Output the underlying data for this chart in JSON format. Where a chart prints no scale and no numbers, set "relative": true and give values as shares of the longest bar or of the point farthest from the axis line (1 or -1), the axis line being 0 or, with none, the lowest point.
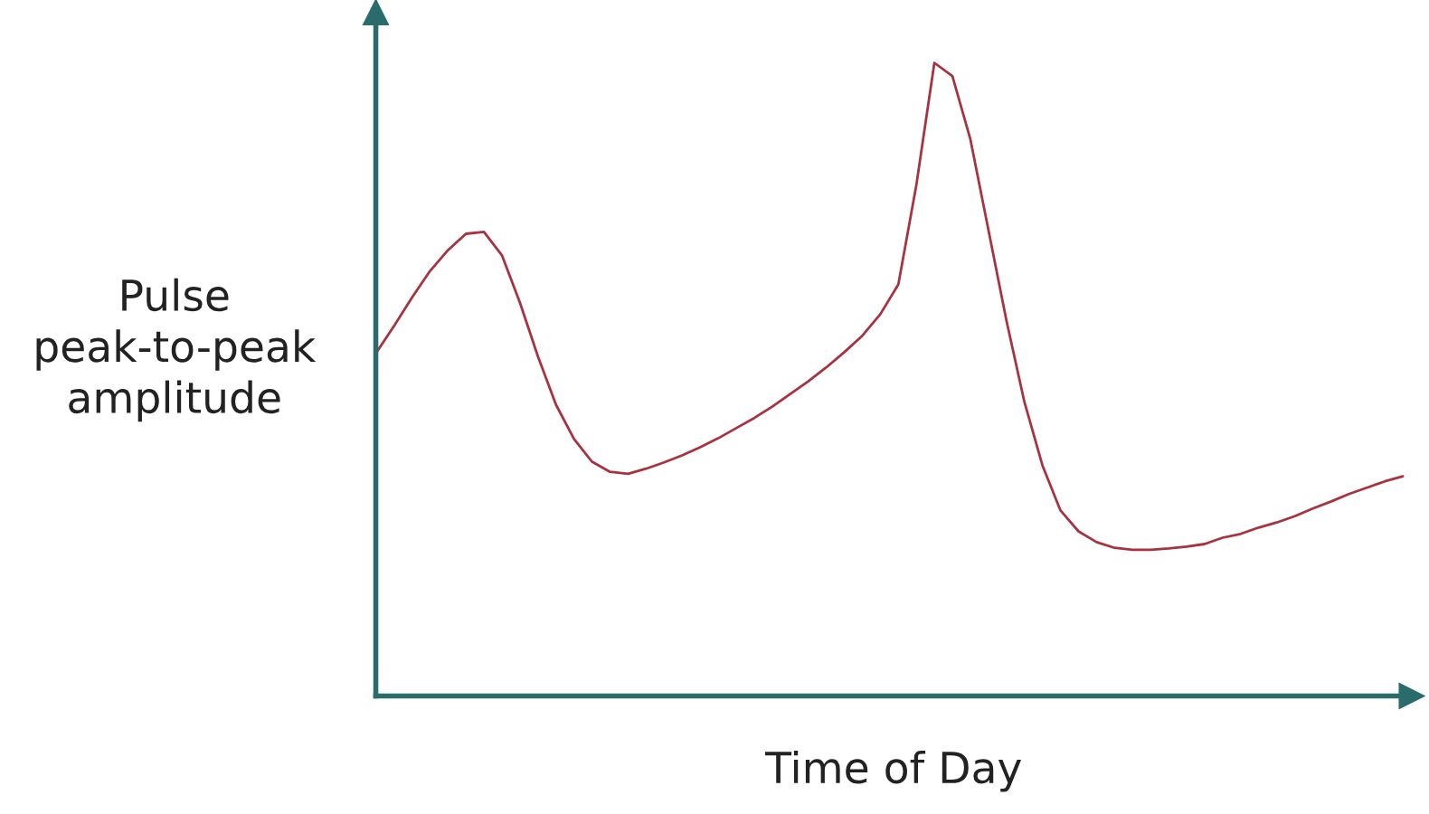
{
  "chart_data": {
    "type": "line",
    "relative": true,
    "xlabel": "Time of Day",
    "ylabel": "Pulse\npeak-to-peak\namplitude",
    "categories": [
      null,
      null,
      null,
      null,
      null,
      null,
      null,
      null,
      null,
      null,
      null,
      null,
      null,
      null,
      null,
      null,
      null,
      null,
      null,
      null,
      null,
      null,
      null,
      null,
      null,
      null,
      null,
      null,
      null,
      null,
      null,
      null,
      null,
      null,
      null,
      null,
      null,
      null,
      null,
      null,
      null,
      null,
      null,
      null,
      null,
      null,
      null,
      null,
      null,
      null,
      null,
      null,
      null,
      null,
      null,
      null,
      null,
      null
    ],
    "series": [
      {
        "color": "#a83240",
        "values": [
          0.541,
          0.584,
          0.629,
          0.671,
          0.704,
          0.73,
          0.733,
          0.696,
          0.621,
          0.536,
          0.46,
          0.406,
          0.37,
          0.354,
          0.351,
          0.359,
          0.369,
          0.38,
          0.393,
          0.407,
          0.423,
          0.439,
          0.457,
          0.477,
          0.497,
          0.519,
          0.543,
          0.569,
          0.603,
          0.65,
          0.807,
          1.0,
          0.979,
          0.879,
          0.736,
          0.593,
          0.464,
          0.364,
          0.293,
          0.26,
          0.243,
          0.234,
          0.231,
          0.231,
          0.233,
          0.236,
          0.24,
          0.25,
          0.256,
          0.266,
          0.274,
          0.284,
          0.296,
          0.307,
          0.319,
          0.329,
          0.339,
          0.347
        ]
      }
    ],
    "grid": false,
    "legend": false,
    "marker": "none",
    "line_style": "solid"
  }
}
